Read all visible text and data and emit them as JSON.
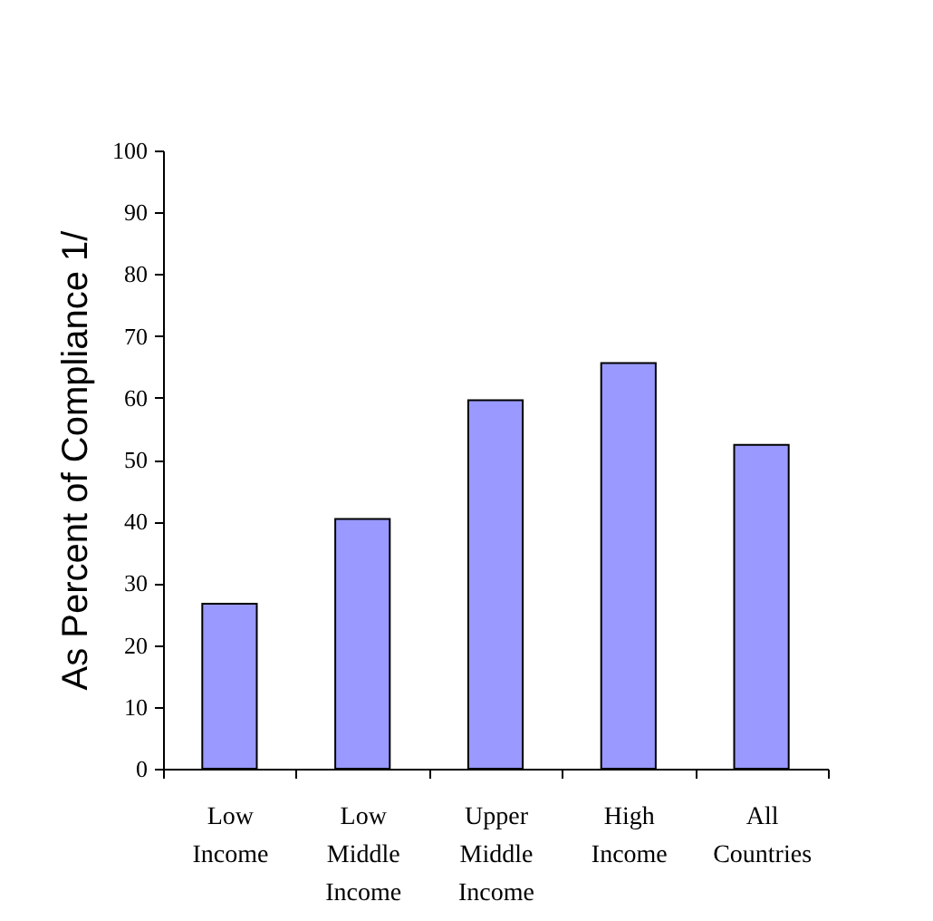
{
  "chart_data": {
    "type": "bar",
    "ylabel": "As Percent of Compliance 1/",
    "categories": [
      "Low Income",
      "Low Middle Income",
      "Upper Middle Income",
      "High Income",
      "All Countries"
    ],
    "values": [
      26.7,
      40.4,
      59.6,
      65.6,
      52.4
    ],
    "color": "#9999ff",
    "ylim": [
      0,
      100
    ],
    "yticks": [
      0,
      10,
      20,
      30,
      40,
      50,
      60,
      70,
      80,
      90,
      100
    ]
  }
}
